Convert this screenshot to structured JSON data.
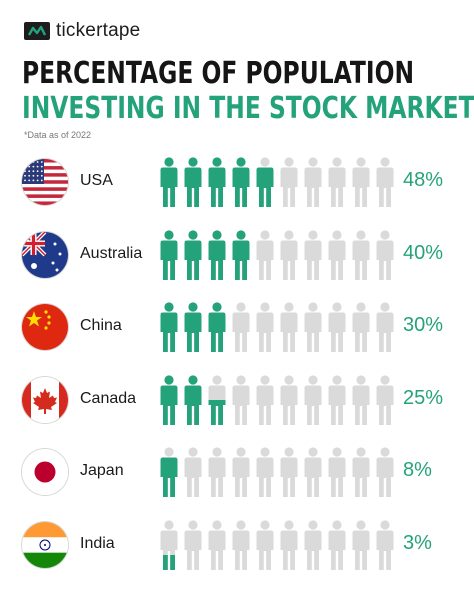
{
  "brand": {
    "name": "tickertape"
  },
  "title_line1": "PERCENTAGE OF POPULATION",
  "title_line2": "INVESTING IN THE STOCK MARKET",
  "note": "*Data as of 2022",
  "colors": {
    "filled": "#24a37b",
    "empty": "#dadada",
    "accent": "#24a37b",
    "title": "#151515"
  },
  "chart_data": {
    "type": "bar",
    "title": "PERCENTAGE OF POPULATION INVESTING IN THE STOCK MARKET",
    "subtitle": "*Data as of 2022",
    "unit": "%",
    "icon_unit_percent": 10,
    "icons_per_row": 10,
    "categories": [
      "USA",
      "Australia",
      "China",
      "Canada",
      "Japan",
      "India"
    ],
    "values": [
      48,
      40,
      30,
      25,
      8,
      3
    ],
    "value_labels": [
      "48%",
      "40%",
      "30%",
      "25%",
      "8%",
      "3%"
    ],
    "flags": [
      "usa-flag-icon",
      "australia-flag-icon",
      "china-flag-icon",
      "canada-flag-icon",
      "japan-flag-icon",
      "india-flag-icon"
    ]
  }
}
